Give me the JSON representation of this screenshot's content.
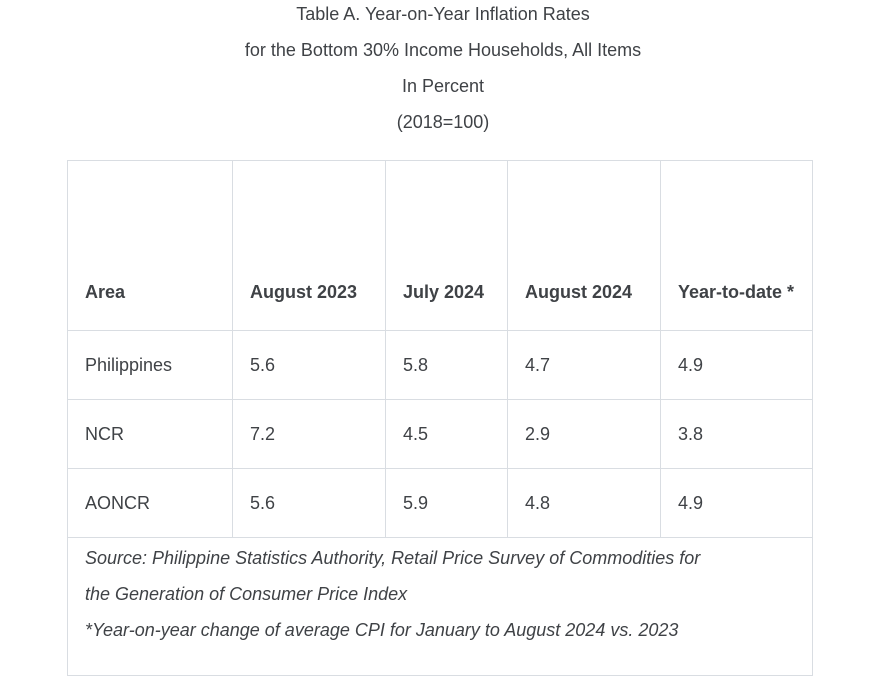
{
  "page": {
    "title_lines": [
      "Table A. Year-on-Year Inflation Rates",
      "for the Bottom 30% Income Households, All Items",
      "In Percent",
      "(2018=100)"
    ]
  },
  "table": {
    "column_headers": [
      "Area",
      "August 2023",
      "July 2024",
      "August 2024",
      "Year-to-date *"
    ],
    "rows": [
      {
        "area": "Philippines",
        "aug_2023": "5.6",
        "jul_2024": "5.8",
        "aug_2024": "4.7",
        "ytd": "4.9"
      },
      {
        "area": "NCR",
        "aug_2023": "7.2",
        "jul_2024": "4.5",
        "aug_2024": "2.9",
        "ytd": "3.8"
      },
      {
        "area": "AONCR",
        "aug_2023": "5.6",
        "jul_2024": "5.9",
        "aug_2024": "4.8",
        "ytd": "4.9"
      }
    ],
    "notes": [
      "Source: Philippine Statistics Authority, Retail Price Survey of Commodities for",
      "the Generation of Consumer Price Index",
      "*Year-on-year change of average CPI for January to August 2024 vs. 2023"
    ]
  },
  "colors": {
    "text": "#3f4246",
    "border": "#d9dde2",
    "background": "#ffffff"
  }
}
